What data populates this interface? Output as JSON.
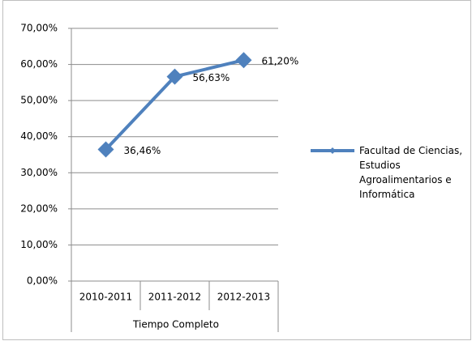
{
  "chart_data": {
    "type": "line",
    "categories": [
      "2010-2011",
      "2011-2012",
      "2012-2013"
    ],
    "x_group_label": "Tiempo Completo",
    "series": [
      {
        "name": "Facultad de Ciencias, Estudios Agroalimentarios e Informática",
        "color": "#4f81bd",
        "values": [
          36.46,
          56.63,
          61.2
        ],
        "value_labels": [
          "36,46%",
          "56,63%",
          "61,20%"
        ]
      }
    ],
    "ylim": [
      0,
      70
    ],
    "yticks": [
      {
        "value": 0,
        "label": "0,00%"
      },
      {
        "value": 10,
        "label": "10,00%"
      },
      {
        "value": 20,
        "label": "20,00%"
      },
      {
        "value": 30,
        "label": "30,00%"
      },
      {
        "value": 40,
        "label": "40,00%"
      },
      {
        "value": 50,
        "label": "50,00%"
      },
      {
        "value": 60,
        "label": "60,00%"
      },
      {
        "value": 70,
        "label": "70,00%"
      }
    ],
    "grid": true,
    "legend": "right"
  }
}
